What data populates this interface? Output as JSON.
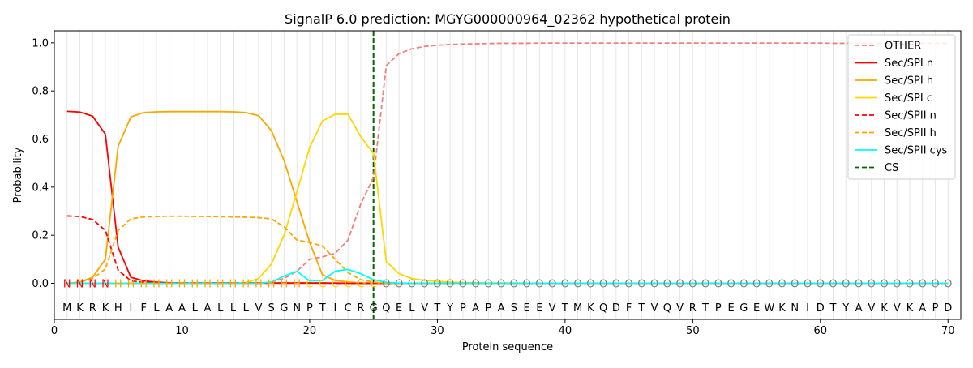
{
  "chart_data": {
    "type": "line",
    "title": "SignalP 6.0 prediction: MGYG000000964_02362 hypothetical protein",
    "xlabel": "Protein sequence",
    "ylabel": "Probability",
    "xlim": [
      0,
      71
    ],
    "ylim": [
      -0.15,
      1.05
    ],
    "x_ticks": [
      0,
      10,
      20,
      30,
      40,
      50,
      60,
      70
    ],
    "y_ticks": [
      0.0,
      0.2,
      0.4,
      0.6,
      0.8,
      1.0
    ],
    "x_tick_labels": [
      "0",
      "10",
      "20",
      "30",
      "40",
      "50",
      "60",
      "70"
    ],
    "y_tick_labels": [
      "0.0",
      "0.2",
      "0.4",
      "0.6",
      "0.8",
      "1.0"
    ],
    "grid": "vertical lines at each residue",
    "legend_position": "top-right",
    "sequence": [
      "M",
      "K",
      "R",
      "K",
      "H",
      "I",
      "F",
      "L",
      "A",
      "A",
      "L",
      "A",
      "L",
      "L",
      "L",
      "V",
      "S",
      "G",
      "N",
      "P",
      "T",
      "I",
      "C",
      "R",
      "G",
      "Q",
      "E",
      "L",
      "V",
      "T",
      "Y",
      "P",
      "A",
      "P",
      "A",
      "S",
      "E",
      "E",
      "V",
      "T",
      "M",
      "K",
      "Q",
      "D",
      "F",
      "T",
      "V",
      "Q",
      "V",
      "R",
      "T",
      "P",
      "E",
      "G",
      "E",
      "W",
      "K",
      "N",
      "I",
      "D",
      "T",
      "Y",
      "A",
      "V",
      "K",
      "V",
      "K",
      "A",
      "P",
      "D"
    ],
    "region_labels": [
      "N",
      "N",
      "N",
      "N",
      "H",
      "H",
      "H",
      "H",
      "H",
      "H",
      "H",
      "H",
      "H",
      "H",
      "H",
      "H",
      "H",
      "H",
      "H",
      "C",
      "C",
      "C",
      "C",
      "C",
      "C",
      "O",
      "O",
      "O",
      "O",
      "O",
      "O",
      "O",
      "O",
      "O",
      "O",
      "O",
      "O",
      "O",
      "O",
      "O",
      "O",
      "O",
      "O",
      "O",
      "O",
      "O",
      "O",
      "O",
      "O",
      "O",
      "O",
      "O",
      "O",
      "O",
      "O",
      "O",
      "O",
      "O",
      "O",
      "O",
      "O",
      "O",
      "O",
      "O",
      "O",
      "O",
      "O",
      "O",
      "O",
      "O"
    ],
    "region_colors": {
      "N": "#ff0000",
      "H": "#ffa500",
      "C": "#ffd700",
      "O": "#808080"
    },
    "cleavage_site": 25,
    "series": [
      {
        "name": "OTHER",
        "color": "#f08080",
        "dash": "dashed",
        "values": [
          0.0,
          0.0,
          0.0,
          0.0,
          0.0,
          0.0,
          0.0,
          0.0,
          0.0,
          0.0,
          0.0,
          0.0,
          0.0,
          0.0,
          0.0,
          0.0,
          0.005,
          0.02,
          0.05,
          0.1,
          0.11,
          0.125,
          0.18,
          0.33,
          0.44,
          0.905,
          0.955,
          0.975,
          0.985,
          0.99,
          0.993,
          0.995,
          0.996,
          0.997,
          0.998,
          0.998,
          0.998,
          0.999,
          0.999,
          0.999,
          0.999,
          0.999,
          0.999,
          0.999,
          0.999,
          0.999,
          0.999,
          0.999,
          0.999,
          0.999,
          0.999,
          0.999,
          0.999,
          0.999,
          0.999,
          0.999,
          0.999,
          0.999,
          0.999,
          0.999,
          0.998,
          0.998,
          0.998,
          0.998,
          0.998,
          0.998,
          0.998,
          0.998,
          0.998,
          0.998
        ]
      },
      {
        "name": "Sec/SPI n",
        "color": "#ff0000",
        "dash": "solid",
        "values": [
          0.715,
          0.712,
          0.695,
          0.62,
          0.15,
          0.025,
          0.01,
          0.005,
          0.002,
          0.001,
          0.001,
          0.001,
          0.001,
          0.001,
          0.001,
          0.001,
          0.001,
          0.001,
          0.001,
          0.001,
          0.001,
          0.001,
          0.0,
          0.0,
          0.0,
          0.0,
          0.0,
          0.0,
          0.0,
          0.0,
          0.0,
          0.0,
          0.0,
          0.0,
          0.0,
          0.0,
          0.0,
          0.0,
          0.0,
          0.0,
          0.0,
          0.0,
          0.0,
          0.0,
          0.0,
          0.0,
          0.0,
          0.0,
          0.0,
          0.0,
          0.0,
          0.0,
          0.0,
          0.0,
          0.0,
          0.0,
          0.0,
          0.0,
          0.0,
          0.0,
          0.0,
          0.0,
          0.0,
          0.0,
          0.0,
          0.0,
          0.0,
          0.0,
          0.0,
          0.0
        ]
      },
      {
        "name": "Sec/SPI h",
        "color": "#ffa500",
        "dash": "solid",
        "values": [
          0.0,
          0.005,
          0.025,
          0.1,
          0.57,
          0.692,
          0.71,
          0.713,
          0.714,
          0.714,
          0.714,
          0.714,
          0.714,
          0.713,
          0.71,
          0.697,
          0.635,
          0.51,
          0.34,
          0.17,
          0.035,
          0.012,
          0.005,
          0.002,
          0.001,
          0.0,
          0.0,
          0.0,
          0.0,
          0.0,
          0.0,
          0.0,
          0.0,
          0.0,
          0.0,
          0.0,
          0.0,
          0.0,
          0.0,
          0.0,
          0.0,
          0.0,
          0.0,
          0.0,
          0.0,
          0.0,
          0.0,
          0.0,
          0.0,
          0.0,
          0.0,
          0.0,
          0.0,
          0.0,
          0.0,
          0.0,
          0.0,
          0.0,
          0.0,
          0.0,
          0.0,
          0.0,
          0.0,
          0.0,
          0.0,
          0.0,
          0.0,
          0.0,
          0.0,
          0.0
        ]
      },
      {
        "name": "Sec/SPI c",
        "color": "#ffd700",
        "dash": "solid",
        "values": [
          0.0,
          0.0,
          0.0,
          0.0,
          0.0,
          0.0,
          0.0,
          0.0,
          0.0,
          0.0,
          0.0,
          0.0,
          0.0,
          0.0,
          0.002,
          0.02,
          0.08,
          0.2,
          0.38,
          0.565,
          0.675,
          0.703,
          0.703,
          0.61,
          0.54,
          0.09,
          0.04,
          0.02,
          0.012,
          0.008,
          0.005,
          0.003,
          0.002,
          0.001,
          0.001,
          0.001,
          0.0,
          0.0,
          0.0,
          0.0,
          0.0,
          0.0,
          0.0,
          0.0,
          0.0,
          0.0,
          0.0,
          0.0,
          0.0,
          0.0,
          0.0,
          0.0,
          0.0,
          0.0,
          0.0,
          0.0,
          0.0,
          0.0,
          0.0,
          0.0,
          0.0,
          0.0,
          0.0,
          0.0,
          0.0,
          0.0,
          0.0,
          0.0,
          0.0,
          0.0
        ]
      },
      {
        "name": "Sec/SPII n",
        "color": "#ff0000",
        "dash": "dashed",
        "values": [
          0.28,
          0.278,
          0.265,
          0.22,
          0.055,
          0.01,
          0.004,
          0.002,
          0.001,
          0.001,
          0.001,
          0.001,
          0.001,
          0.001,
          0.001,
          0.001,
          0.001,
          0.001,
          0.001,
          0.001,
          0.001,
          0.0,
          0.0,
          0.0,
          0.0,
          0.0,
          0.0,
          0.0,
          0.0,
          0.0,
          0.0,
          0.0,
          0.0,
          0.0,
          0.0,
          0.0,
          0.0,
          0.0,
          0.0,
          0.0,
          0.0,
          0.0,
          0.0,
          0.0,
          0.0,
          0.0,
          0.0,
          0.0,
          0.0,
          0.0,
          0.0,
          0.0,
          0.0,
          0.0,
          0.0,
          0.0,
          0.0,
          0.0,
          0.0,
          0.0,
          0.0,
          0.0,
          0.0,
          0.0,
          0.0,
          0.0,
          0.0,
          0.0,
          0.0,
          0.0
        ]
      },
      {
        "name": "Sec/SPII h",
        "color": "#ffa500",
        "dash": "dashed",
        "values": [
          0.0,
          0.005,
          0.02,
          0.06,
          0.22,
          0.268,
          0.276,
          0.278,
          0.279,
          0.279,
          0.278,
          0.278,
          0.277,
          0.276,
          0.275,
          0.273,
          0.268,
          0.235,
          0.18,
          0.17,
          0.155,
          0.1,
          0.045,
          0.015,
          0.005,
          0.001,
          0.0,
          0.0,
          0.0,
          0.0,
          0.0,
          0.0,
          0.0,
          0.0,
          0.0,
          0.0,
          0.0,
          0.0,
          0.0,
          0.0,
          0.0,
          0.0,
          0.0,
          0.0,
          0.0,
          0.0,
          0.0,
          0.0,
          0.0,
          0.0,
          0.0,
          0.0,
          0.0,
          0.0,
          0.0,
          0.0,
          0.0,
          0.0,
          0.0,
          0.0,
          0.0,
          0.0,
          0.0,
          0.0,
          0.0,
          0.0,
          0.0,
          0.0,
          0.0,
          0.0
        ]
      },
      {
        "name": "Sec/SPII cys",
        "color": "#00ffff",
        "dash": "solid",
        "values": [
          0.0,
          0.0,
          0.0,
          0.0,
          0.0,
          0.0,
          0.0,
          0.0,
          0.0,
          0.0,
          0.0,
          0.0,
          0.0,
          0.0,
          0.0,
          0.0,
          0.005,
          0.03,
          0.05,
          0.01,
          0.012,
          0.05,
          0.058,
          0.04,
          0.015,
          0.004,
          0.001,
          0.0,
          0.0,
          0.0,
          0.0,
          0.0,
          0.0,
          0.0,
          0.0,
          0.0,
          0.0,
          0.0,
          0.0,
          0.0,
          0.0,
          0.0,
          0.0,
          0.0,
          0.0,
          0.0,
          0.0,
          0.0,
          0.0,
          0.0,
          0.0,
          0.0,
          0.0,
          0.0,
          0.0,
          0.0,
          0.0,
          0.0,
          0.0,
          0.0,
          0.0,
          0.0,
          0.0,
          0.0,
          0.0,
          0.0,
          0.0,
          0.0,
          0.0,
          0.0
        ]
      },
      {
        "name": "CS",
        "color": "#006400",
        "dash": "dashed",
        "vertical_at": 25
      }
    ]
  }
}
